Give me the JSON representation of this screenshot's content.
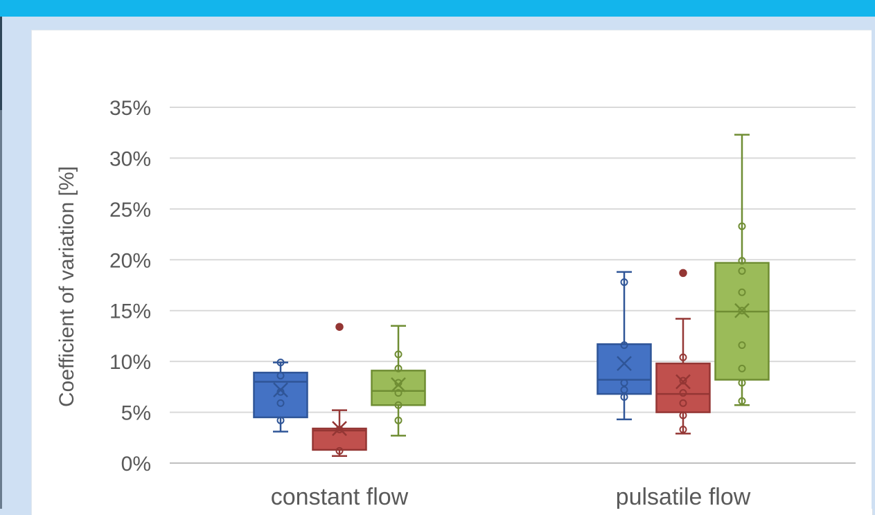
{
  "chart_data": {
    "type": "box",
    "ylabel": "Coefficient of variation [%]",
    "yticks": [
      "0%",
      "5%",
      "10%",
      "15%",
      "20%",
      "25%",
      "30%",
      "35%"
    ],
    "ylim": [
      0,
      35
    ],
    "grid": true,
    "categories": [
      "constant flow",
      "pulsatile flow"
    ],
    "colors": {
      "blue": "#4472c4",
      "red": "#c0504d",
      "green": "#9bbb59",
      "blue_edge": "#2f5597",
      "red_edge": "#943634",
      "green_edge": "#6f8d33"
    },
    "series": [
      {
        "color": "blue",
        "boxes": [
          {
            "category": "constant flow",
            "min": 3.1,
            "q1": 4.5,
            "median": 8.0,
            "q3": 8.9,
            "max": 9.9,
            "mean": 7.2,
            "points": [
              4.2,
              5.9,
              7.0,
              8.6,
              9.9
            ],
            "outliers": []
          },
          {
            "category": "pulsatile flow",
            "min": 4.3,
            "q1": 6.8,
            "median": 8.2,
            "q3": 11.7,
            "max": 18.8,
            "mean": 9.8,
            "points": [
              6.5,
              7.2,
              7.9,
              11.6,
              17.8
            ],
            "outliers": []
          }
        ]
      },
      {
        "color": "red",
        "boxes": [
          {
            "category": "constant flow",
            "min": 0.7,
            "q1": 1.3,
            "median": 3.2,
            "q3": 3.4,
            "max": 5.2,
            "mean": 3.4,
            "points": [
              1.2,
              3.3
            ],
            "outliers": [
              13.4
            ]
          },
          {
            "category": "pulsatile flow",
            "min": 2.9,
            "q1": 5.0,
            "median": 6.8,
            "q3": 9.8,
            "max": 14.2,
            "mean": 8.0,
            "points": [
              3.3,
              4.7,
              5.9,
              6.9,
              8.1,
              10.4
            ],
            "outliers": [
              18.7
            ]
          }
        ]
      },
      {
        "color": "green",
        "boxes": [
          {
            "category": "constant flow",
            "min": 2.7,
            "q1": 5.7,
            "median": 7.1,
            "q3": 9.1,
            "max": 13.5,
            "mean": 7.7,
            "points": [
              4.2,
              5.7,
              6.9,
              7.9,
              9.3,
              10.7
            ],
            "outliers": []
          },
          {
            "category": "pulsatile flow",
            "min": 5.7,
            "q1": 8.2,
            "median": 14.9,
            "q3": 19.7,
            "max": 32.3,
            "mean": 15.0,
            "points": [
              6.1,
              7.9,
              9.3,
              11.6,
              15.0,
              16.8,
              18.9,
              19.9,
              23.3
            ],
            "outliers": []
          }
        ]
      }
    ]
  }
}
